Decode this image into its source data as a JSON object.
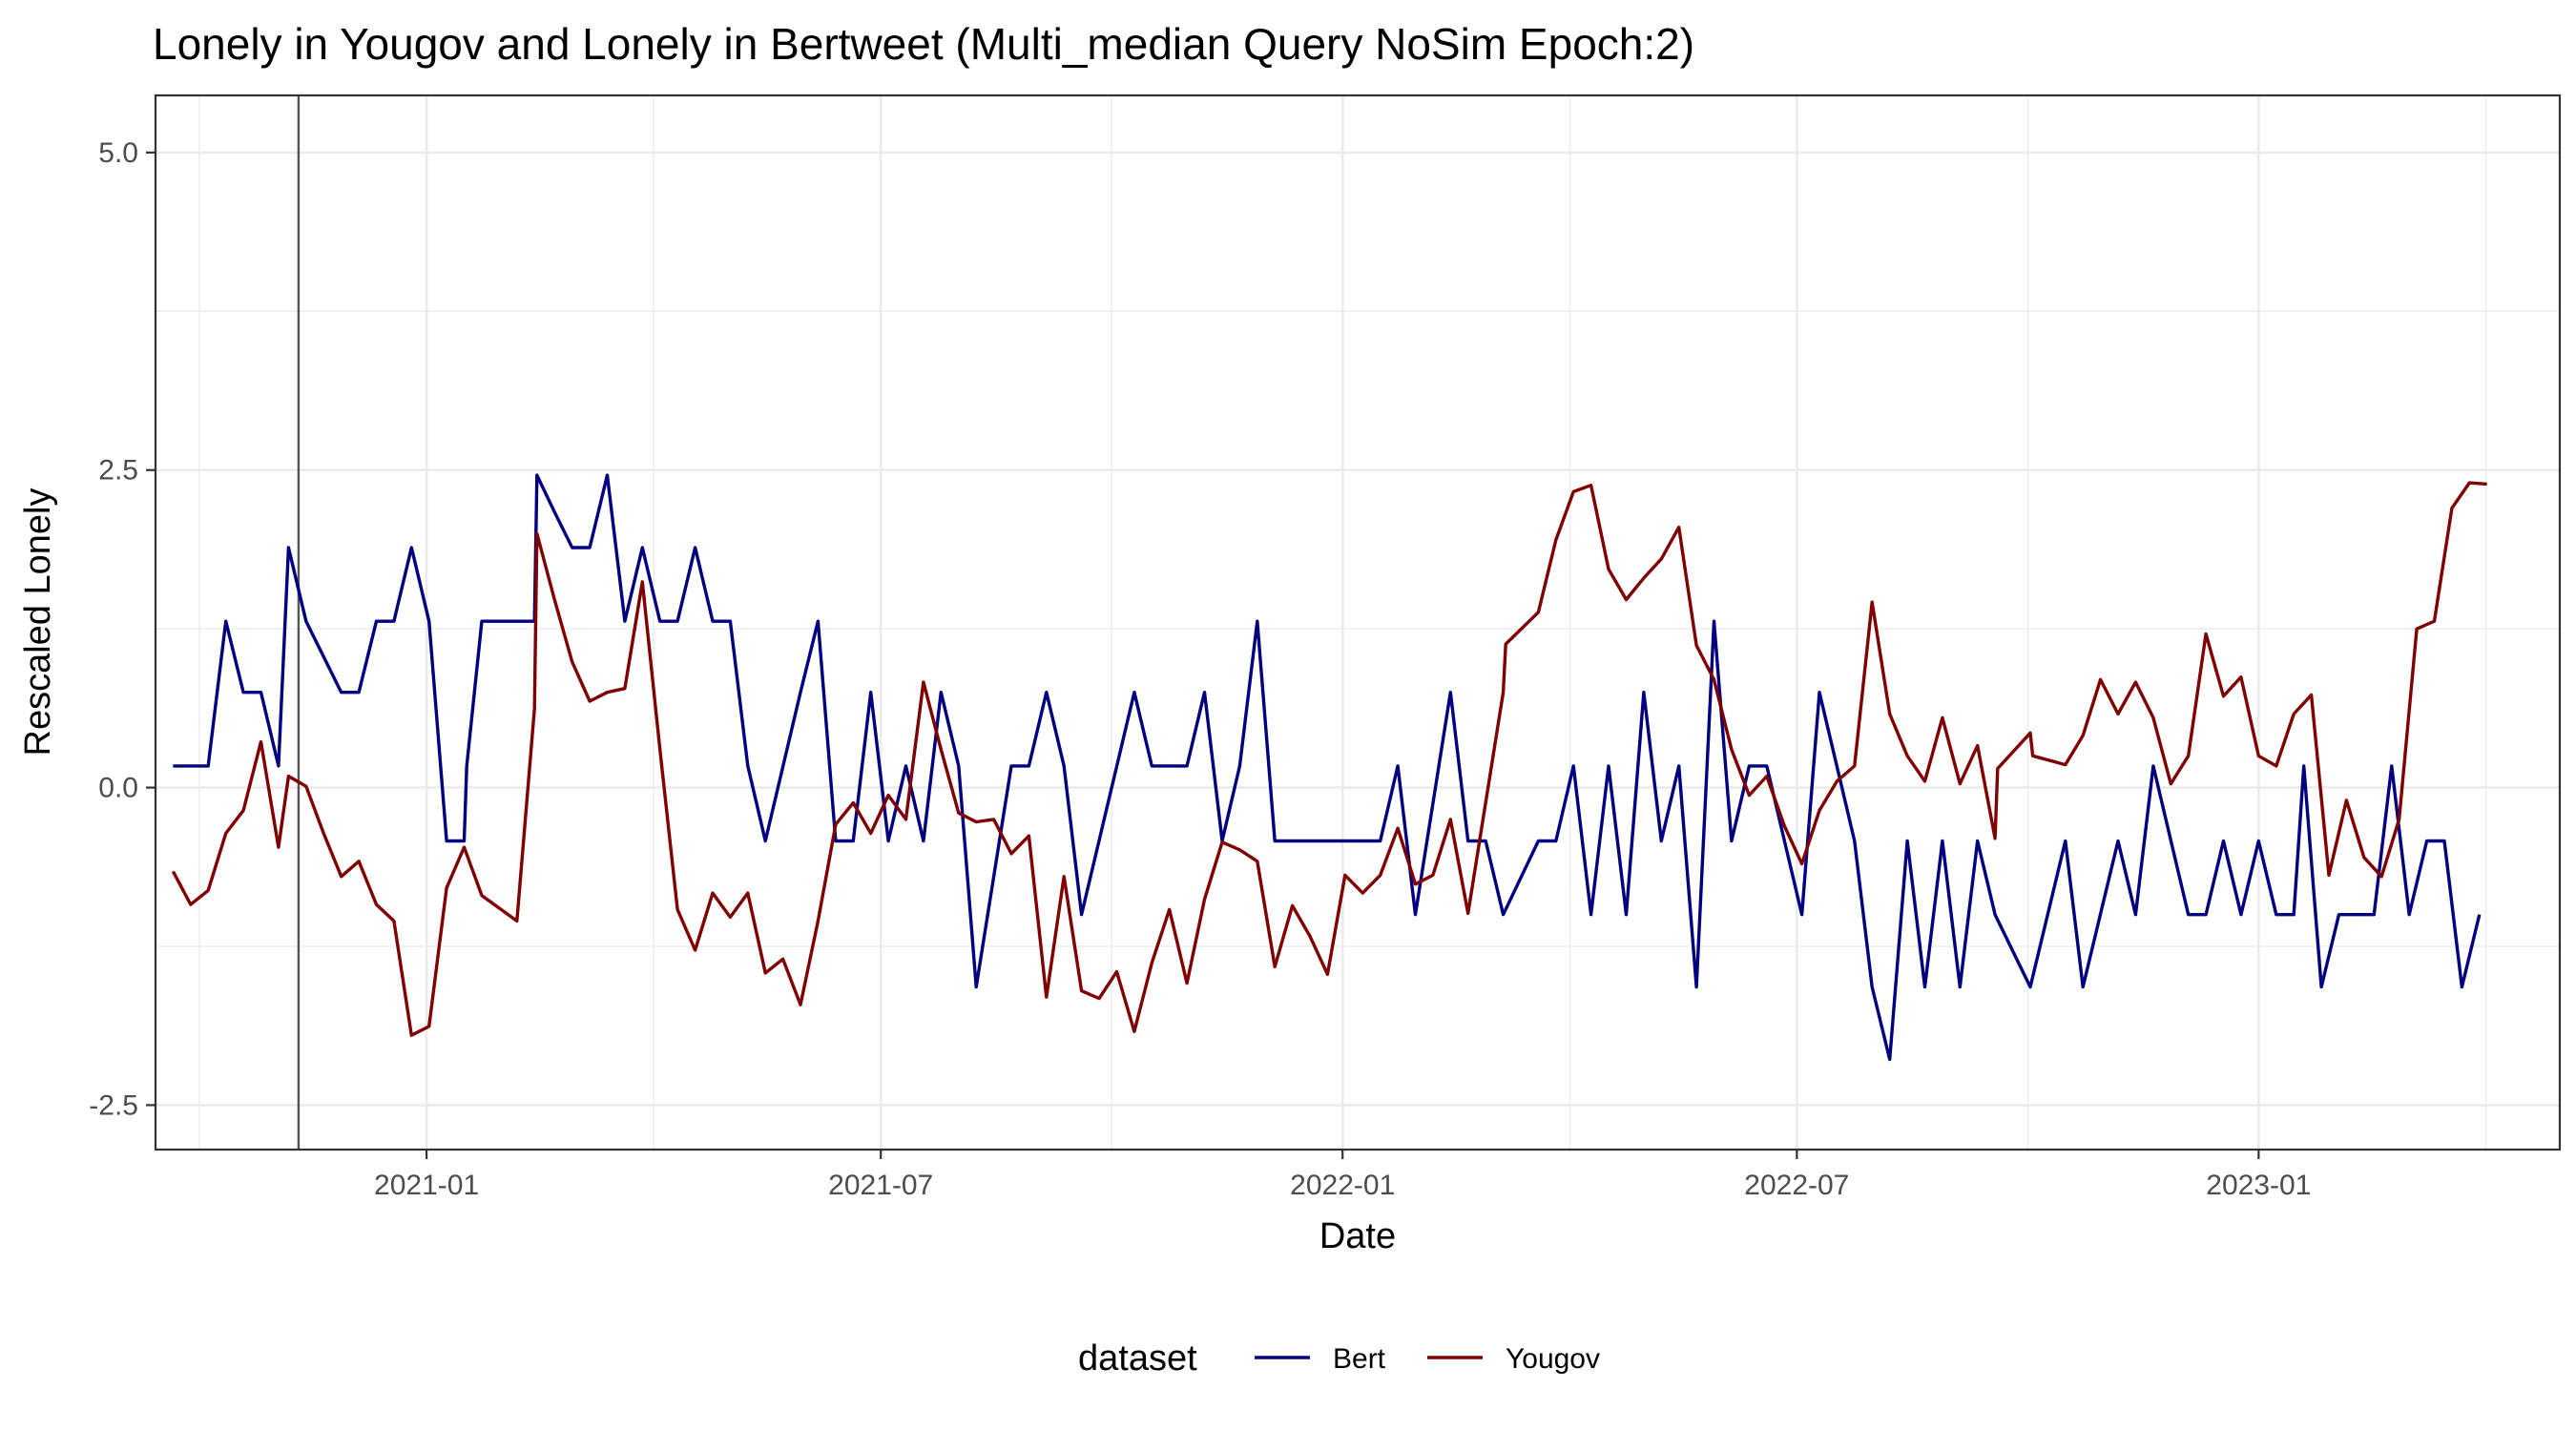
{
  "chart_data": {
    "type": "line",
    "title": "Lonely in Yougov and Lonely in Bertweet (Multi_median Query NoSim Epoch:2)",
    "xlabel": "Date",
    "ylabel": "Rescaled  Lonely",
    "xlim": [
      "2020-09-15",
      "2023-05-01"
    ],
    "ylim": [
      -2.85,
      5.45
    ],
    "x_ticks": [
      "2021-01-01",
      "2021-07-01",
      "2022-01-01",
      "2022-07-01",
      "2023-01-01"
    ],
    "x_tick_labels": [
      "2021-01",
      "2021-07",
      "2022-01",
      "2022-07",
      "2023-01"
    ],
    "y_ticks": [
      -2.5,
      0.0,
      2.5,
      5.0
    ],
    "y_tick_labels": [
      "-2.5",
      "0.0",
      "2.5",
      "5.0"
    ],
    "reference_line": "2020-11-11",
    "grid": true,
    "legend_title": "dataset",
    "legend_position": "bottom",
    "series": [
      {
        "name": "Bert",
        "color": "#000080",
        "points": [
          [
            "2020-09-22",
            0.17
          ],
          [
            "2020-09-29",
            0.17
          ],
          [
            "2020-10-06",
            0.17
          ],
          [
            "2020-10-13",
            1.31
          ],
          [
            "2020-10-20",
            0.75
          ],
          [
            "2020-10-27",
            0.75
          ],
          [
            "2020-11-03",
            0.17
          ],
          [
            "2020-11-07",
            1.89
          ],
          [
            "2020-11-14",
            1.31
          ],
          [
            "2020-11-21",
            1.03
          ],
          [
            "2020-11-28",
            0.75
          ],
          [
            "2020-12-05",
            0.75
          ],
          [
            "2020-12-12",
            1.31
          ],
          [
            "2020-12-19",
            1.31
          ],
          [
            "2020-12-26",
            1.89
          ],
          [
            "2021-01-02",
            1.31
          ],
          [
            "2021-01-09",
            -0.42
          ],
          [
            "2021-01-16",
            -0.42
          ],
          [
            "2021-01-17",
            0.17
          ],
          [
            "2021-01-23",
            1.31
          ],
          [
            "2021-01-30",
            1.31
          ],
          [
            "2021-02-06",
            1.31
          ],
          [
            "2021-02-13",
            1.31
          ],
          [
            "2021-02-14",
            2.46
          ],
          [
            "2021-02-21",
            2.17
          ],
          [
            "2021-02-28",
            1.89
          ],
          [
            "2021-03-07",
            1.89
          ],
          [
            "2021-03-14",
            2.46
          ],
          [
            "2021-03-21",
            1.31
          ],
          [
            "2021-03-28",
            1.89
          ],
          [
            "2021-04-04",
            1.31
          ],
          [
            "2021-04-11",
            1.31
          ],
          [
            "2021-04-18",
            1.89
          ],
          [
            "2021-04-25",
            1.31
          ],
          [
            "2021-05-02",
            1.31
          ],
          [
            "2021-05-09",
            0.17
          ],
          [
            "2021-05-16",
            -0.42
          ],
          [
            "2021-05-30",
            0.75
          ],
          [
            "2021-06-06",
            1.31
          ],
          [
            "2021-06-13",
            -0.42
          ],
          [
            "2021-06-20",
            -0.42
          ],
          [
            "2021-06-27",
            0.75
          ],
          [
            "2021-07-04",
            -0.42
          ],
          [
            "2021-07-11",
            0.17
          ],
          [
            "2021-07-18",
            -0.42
          ],
          [
            "2021-07-25",
            0.75
          ],
          [
            "2021-08-01",
            0.17
          ],
          [
            "2021-08-08",
            -1.57
          ],
          [
            "2021-08-22",
            0.17
          ],
          [
            "2021-08-29",
            0.17
          ],
          [
            "2021-09-05",
            0.75
          ],
          [
            "2021-09-12",
            0.17
          ],
          [
            "2021-09-19",
            -1.0
          ],
          [
            "2021-10-10",
            0.75
          ],
          [
            "2021-10-17",
            0.17
          ],
          [
            "2021-10-31",
            0.17
          ],
          [
            "2021-11-07",
            0.75
          ],
          [
            "2021-11-14",
            -0.42
          ],
          [
            "2021-11-21",
            0.17
          ],
          [
            "2021-11-28",
            1.31
          ],
          [
            "2021-12-05",
            -0.42
          ],
          [
            "2022-01-16",
            -0.42
          ],
          [
            "2022-01-23",
            0.17
          ],
          [
            "2022-01-30",
            -1.0
          ],
          [
            "2022-02-13",
            0.75
          ],
          [
            "2022-02-20",
            -0.42
          ],
          [
            "2022-02-27",
            -0.42
          ],
          [
            "2022-03-06",
            -1.0
          ],
          [
            "2022-03-20",
            -0.42
          ],
          [
            "2022-03-27",
            -0.42
          ],
          [
            "2022-04-03",
            0.17
          ],
          [
            "2022-04-10",
            -1.0
          ],
          [
            "2022-04-17",
            0.17
          ],
          [
            "2022-04-24",
            -1.0
          ],
          [
            "2022-05-01",
            0.75
          ],
          [
            "2022-05-08",
            -0.42
          ],
          [
            "2022-05-15",
            0.17
          ],
          [
            "2022-05-22",
            -1.57
          ],
          [
            "2022-05-29",
            1.31
          ],
          [
            "2022-06-05",
            -0.42
          ],
          [
            "2022-06-12",
            0.17
          ],
          [
            "2022-06-19",
            0.17
          ],
          [
            "2022-07-03",
            -1.0
          ],
          [
            "2022-07-10",
            0.75
          ],
          [
            "2022-07-24",
            -0.42
          ],
          [
            "2022-07-31",
            -1.57
          ],
          [
            "2022-08-07",
            -2.14
          ],
          [
            "2022-08-14",
            -0.42
          ],
          [
            "2022-08-21",
            -1.57
          ],
          [
            "2022-08-28",
            -0.42
          ],
          [
            "2022-09-04",
            -1.57
          ],
          [
            "2022-09-11",
            -0.42
          ],
          [
            "2022-09-18",
            -1.0
          ],
          [
            "2022-10-02",
            -1.57
          ],
          [
            "2022-10-16",
            -0.42
          ],
          [
            "2022-10-23",
            -1.57
          ],
          [
            "2022-11-06",
            -0.42
          ],
          [
            "2022-11-13",
            -1.0
          ],
          [
            "2022-11-20",
            0.17
          ],
          [
            "2022-12-04",
            -1.0
          ],
          [
            "2022-12-11",
            -1.0
          ],
          [
            "2022-12-18",
            -0.42
          ],
          [
            "2022-12-25",
            -1.0
          ],
          [
            "2023-01-01",
            -0.42
          ],
          [
            "2023-01-08",
            -1.0
          ],
          [
            "2023-01-15",
            -1.0
          ],
          [
            "2023-01-19",
            0.17
          ],
          [
            "2023-01-26",
            -1.57
          ],
          [
            "2023-02-02",
            -1.0
          ],
          [
            "2023-02-16",
            -1.0
          ],
          [
            "2023-02-23",
            0.17
          ],
          [
            "2023-03-02",
            -1.0
          ],
          [
            "2023-03-09",
            -0.42
          ],
          [
            "2023-03-16",
            -0.42
          ],
          [
            "2023-03-23",
            -1.57
          ],
          [
            "2023-03-30",
            -1.0
          ]
        ]
      },
      {
        "name": "Yougov",
        "color": "#800000",
        "points": [
          [
            "2020-09-22",
            -0.66
          ],
          [
            "2020-09-29",
            -0.92
          ],
          [
            "2020-10-06",
            -0.81
          ],
          [
            "2020-10-13",
            -0.36
          ],
          [
            "2020-10-20",
            -0.18
          ],
          [
            "2020-10-27",
            0.36
          ],
          [
            "2020-11-03",
            -0.47
          ],
          [
            "2020-11-07",
            0.09
          ],
          [
            "2020-11-14",
            0.01
          ],
          [
            "2020-11-21",
            -0.36
          ],
          [
            "2020-11-28",
            -0.7
          ],
          [
            "2020-12-05",
            -0.58
          ],
          [
            "2020-12-12",
            -0.92
          ],
          [
            "2020-12-19",
            -1.05
          ],
          [
            "2020-12-26",
            -1.95
          ],
          [
            "2021-01-02",
            -1.88
          ],
          [
            "2021-01-09",
            -0.79
          ],
          [
            "2021-01-16",
            -0.47
          ],
          [
            "2021-01-23",
            -0.85
          ],
          [
            "2021-02-06",
            -1.05
          ],
          [
            "2021-02-13",
            0.62
          ],
          [
            "2021-02-14",
            2.0
          ],
          [
            "2021-02-21",
            1.48
          ],
          [
            "2021-02-28",
            0.99
          ],
          [
            "2021-03-07",
            0.68
          ],
          [
            "2021-03-14",
            0.75
          ],
          [
            "2021-03-21",
            0.78
          ],
          [
            "2021-03-28",
            1.62
          ],
          [
            "2021-04-04",
            0.3
          ],
          [
            "2021-04-11",
            -0.96
          ],
          [
            "2021-04-18",
            -1.28
          ],
          [
            "2021-04-25",
            -0.83
          ],
          [
            "2021-05-02",
            -1.02
          ],
          [
            "2021-05-09",
            -0.83
          ],
          [
            "2021-05-16",
            -1.46
          ],
          [
            "2021-05-23",
            -1.35
          ],
          [
            "2021-05-30",
            -1.71
          ],
          [
            "2021-06-06",
            -1.05
          ],
          [
            "2021-06-13",
            -0.29
          ],
          [
            "2021-06-20",
            -0.12
          ],
          [
            "2021-06-27",
            -0.36
          ],
          [
            "2021-07-04",
            -0.06
          ],
          [
            "2021-07-11",
            -0.25
          ],
          [
            "2021-07-18",
            0.83
          ],
          [
            "2021-07-25",
            0.3
          ],
          [
            "2021-08-01",
            -0.2
          ],
          [
            "2021-08-08",
            -0.27
          ],
          [
            "2021-08-15",
            -0.25
          ],
          [
            "2021-08-22",
            -0.52
          ],
          [
            "2021-08-29",
            -0.38
          ],
          [
            "2021-09-05",
            -1.65
          ],
          [
            "2021-09-12",
            -0.7
          ],
          [
            "2021-09-19",
            -1.6
          ],
          [
            "2021-09-26",
            -1.66
          ],
          [
            "2021-10-03",
            -1.45
          ],
          [
            "2021-10-10",
            -1.92
          ],
          [
            "2021-10-17",
            -1.38
          ],
          [
            "2021-10-24",
            -0.96
          ],
          [
            "2021-10-31",
            -1.54
          ],
          [
            "2021-11-07",
            -0.88
          ],
          [
            "2021-11-14",
            -0.43
          ],
          [
            "2021-11-21",
            -0.49
          ],
          [
            "2021-11-28",
            -0.58
          ],
          [
            "2021-12-05",
            -1.41
          ],
          [
            "2021-12-12",
            -0.93
          ],
          [
            "2021-12-19",
            -1.17
          ],
          [
            "2021-12-26",
            -1.47
          ],
          [
            "2022-01-02",
            -0.69
          ],
          [
            "2022-01-09",
            -0.83
          ],
          [
            "2022-01-16",
            -0.69
          ],
          [
            "2022-01-23",
            -0.32
          ],
          [
            "2022-01-30",
            -0.76
          ],
          [
            "2022-02-06",
            -0.69
          ],
          [
            "2022-02-13",
            -0.25
          ],
          [
            "2022-02-20",
            -0.99
          ],
          [
            "2022-03-06",
            0.75
          ],
          [
            "2022-03-07",
            1.13
          ],
          [
            "2022-03-20",
            1.38
          ],
          [
            "2022-03-27",
            1.95
          ],
          [
            "2022-04-03",
            2.33
          ],
          [
            "2022-04-10",
            2.38
          ],
          [
            "2022-04-17",
            1.72
          ],
          [
            "2022-04-24",
            1.48
          ],
          [
            "2022-05-01",
            1.65
          ],
          [
            "2022-05-08",
            1.8
          ],
          [
            "2022-05-15",
            2.05
          ],
          [
            "2022-05-22",
            1.12
          ],
          [
            "2022-05-29",
            0.85
          ],
          [
            "2022-06-05",
            0.3
          ],
          [
            "2022-06-12",
            -0.06
          ],
          [
            "2022-06-19",
            0.09
          ],
          [
            "2022-06-26",
            -0.3
          ],
          [
            "2022-07-03",
            -0.6
          ],
          [
            "2022-07-10",
            -0.18
          ],
          [
            "2022-07-17",
            0.05
          ],
          [
            "2022-07-24",
            0.17
          ],
          [
            "2022-07-31",
            1.46
          ],
          [
            "2022-08-07",
            0.58
          ],
          [
            "2022-08-14",
            0.25
          ],
          [
            "2022-08-21",
            0.05
          ],
          [
            "2022-08-28",
            0.55
          ],
          [
            "2022-09-04",
            0.03
          ],
          [
            "2022-09-11",
            0.33
          ],
          [
            "2022-09-18",
            -0.4
          ],
          [
            "2022-09-19",
            0.15
          ],
          [
            "2022-10-02",
            0.43
          ],
          [
            "2022-10-03",
            0.25
          ],
          [
            "2022-10-16",
            0.18
          ],
          [
            "2022-10-23",
            0.41
          ],
          [
            "2022-10-30",
            0.85
          ],
          [
            "2022-11-06",
            0.58
          ],
          [
            "2022-11-13",
            0.83
          ],
          [
            "2022-11-20",
            0.55
          ],
          [
            "2022-11-27",
            0.03
          ],
          [
            "2022-12-04",
            0.25
          ],
          [
            "2022-12-11",
            1.21
          ],
          [
            "2022-12-18",
            0.72
          ],
          [
            "2022-12-25",
            0.87
          ],
          [
            "2023-01-01",
            0.25
          ],
          [
            "2023-01-08",
            0.17
          ],
          [
            "2023-01-15",
            0.58
          ],
          [
            "2023-01-22",
            0.73
          ],
          [
            "2023-01-29",
            -0.69
          ],
          [
            "2023-02-05",
            -0.1
          ],
          [
            "2023-02-12",
            -0.55
          ],
          [
            "2023-02-19",
            -0.7
          ],
          [
            "2023-02-26",
            -0.25
          ],
          [
            "2023-03-05",
            1.25
          ],
          [
            "2023-03-12",
            1.31
          ],
          [
            "2023-03-19",
            2.2
          ],
          [
            "2023-03-26",
            2.4
          ],
          [
            "2023-04-02",
            2.39
          ]
        ]
      }
    ]
  }
}
